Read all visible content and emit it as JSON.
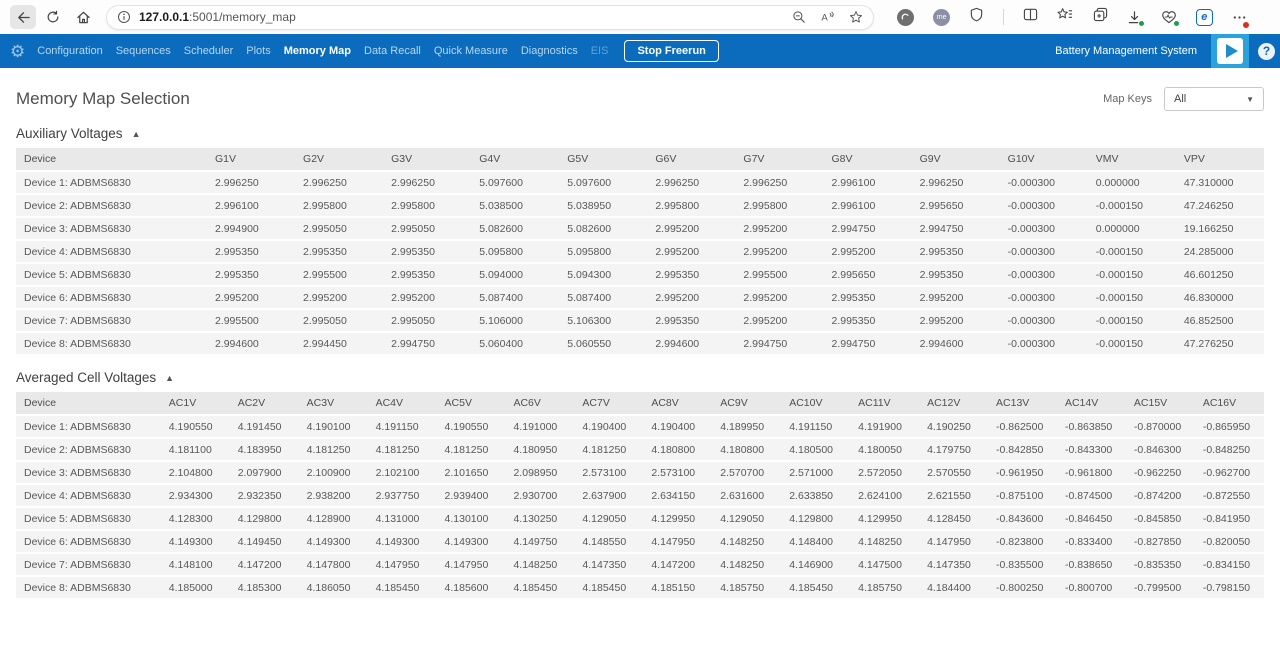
{
  "browser": {
    "url_host": "127.0.0.1",
    "url_rest": ":5001/memory_map"
  },
  "navbar": {
    "items": [
      {
        "label": "Configuration",
        "active": false,
        "disabled": false
      },
      {
        "label": "Sequences",
        "active": false,
        "disabled": false
      },
      {
        "label": "Scheduler",
        "active": false,
        "disabled": false
      },
      {
        "label": "Plots",
        "active": false,
        "disabled": false
      },
      {
        "label": "Memory Map",
        "active": true,
        "disabled": false
      },
      {
        "label": "Data Recall",
        "active": false,
        "disabled": false
      },
      {
        "label": "Quick Measure",
        "active": false,
        "disabled": false
      },
      {
        "label": "Diagnostics",
        "active": false,
        "disabled": false
      },
      {
        "label": "EIS",
        "active": false,
        "disabled": true
      }
    ],
    "stop_button": "Stop Freerun",
    "brand": "Battery Management System"
  },
  "page": {
    "title": "Memory Map Selection",
    "map_keys_label": "Map Keys",
    "map_keys_value": "All"
  },
  "sections": [
    {
      "title": "Auxiliary Voltages",
      "columns": [
        "Device",
        "G1V",
        "G2V",
        "G3V",
        "G4V",
        "G5V",
        "G6V",
        "G7V",
        "G8V",
        "G9V",
        "G10V",
        "VMV",
        "VPV"
      ],
      "rows": [
        {
          "device": "Device 1: ADBMS6830",
          "values": [
            "2.996250",
            "2.996250",
            "2.996250",
            "5.097600",
            "5.097600",
            "2.996250",
            "2.996250",
            "2.996100",
            "2.996250",
            "-0.000300",
            "0.000000",
            "47.310000"
          ]
        },
        {
          "device": "Device 2: ADBMS6830",
          "values": [
            "2.996100",
            "2.995800",
            "2.995800",
            "5.038500",
            "5.038950",
            "2.995800",
            "2.995800",
            "2.996100",
            "2.995650",
            "-0.000300",
            "-0.000150",
            "47.246250"
          ]
        },
        {
          "device": "Device 3: ADBMS6830",
          "values": [
            "2.994900",
            "2.995050",
            "2.995050",
            "5.082600",
            "5.082600",
            "2.995200",
            "2.995200",
            "2.994750",
            "2.994750",
            "-0.000300",
            "0.000000",
            "19.166250"
          ]
        },
        {
          "device": "Device 4: ADBMS6830",
          "values": [
            "2.995350",
            "2.995350",
            "2.995350",
            "5.095800",
            "5.095800",
            "2.995200",
            "2.995200",
            "2.995200",
            "2.995350",
            "-0.000300",
            "-0.000150",
            "24.285000"
          ]
        },
        {
          "device": "Device 5: ADBMS6830",
          "values": [
            "2.995350",
            "2.995500",
            "2.995350",
            "5.094000",
            "5.094300",
            "2.995350",
            "2.995500",
            "2.995650",
            "2.995350",
            "-0.000300",
            "-0.000150",
            "46.601250"
          ]
        },
        {
          "device": "Device 6: ADBMS6830",
          "values": [
            "2.995200",
            "2.995200",
            "2.995200",
            "5.087400",
            "5.087400",
            "2.995200",
            "2.995200",
            "2.995350",
            "2.995200",
            "-0.000300",
            "-0.000150",
            "46.830000"
          ]
        },
        {
          "device": "Device 7: ADBMS6830",
          "values": [
            "2.995500",
            "2.995050",
            "2.995050",
            "5.106000",
            "5.106300",
            "2.995350",
            "2.995200",
            "2.995350",
            "2.995200",
            "-0.000300",
            "-0.000150",
            "46.852500"
          ]
        },
        {
          "device": "Device 8: ADBMS6830",
          "values": [
            "2.994600",
            "2.994450",
            "2.994750",
            "5.060400",
            "5.060550",
            "2.994600",
            "2.994750",
            "2.994750",
            "2.994600",
            "-0.000300",
            "-0.000150",
            "47.276250"
          ]
        }
      ]
    },
    {
      "title": "Averaged Cell Voltages",
      "columns": [
        "Device",
        "AC1V",
        "AC2V",
        "AC3V",
        "AC4V",
        "AC5V",
        "AC6V",
        "AC7V",
        "AC8V",
        "AC9V",
        "AC10V",
        "AC11V",
        "AC12V",
        "AC13V",
        "AC14V",
        "AC15V",
        "AC16V"
      ],
      "rows": [
        {
          "device": "Device 1: ADBMS6830",
          "values": [
            "4.190550",
            "4.191450",
            "4.190100",
            "4.191150",
            "4.190550",
            "4.191000",
            "4.190400",
            "4.190400",
            "4.189950",
            "4.191150",
            "4.191900",
            "4.190250",
            "-0.862500",
            "-0.863850",
            "-0.870000",
            "-0.865950"
          ]
        },
        {
          "device": "Device 2: ADBMS6830",
          "values": [
            "4.181100",
            "4.183950",
            "4.181250",
            "4.181250",
            "4.181250",
            "4.180950",
            "4.181250",
            "4.180800",
            "4.180800",
            "4.180500",
            "4.180050",
            "4.179750",
            "-0.842850",
            "-0.843300",
            "-0.846300",
            "-0.848250"
          ]
        },
        {
          "device": "Device 3: ADBMS6830",
          "values": [
            "2.104800",
            "2.097900",
            "2.100900",
            "2.102100",
            "2.101650",
            "2.098950",
            "2.573100",
            "2.573100",
            "2.570700",
            "2.571000",
            "2.572050",
            "2.570550",
            "-0.961950",
            "-0.961800",
            "-0.962250",
            "-0.962700"
          ]
        },
        {
          "device": "Device 4: ADBMS6830",
          "values": [
            "2.934300",
            "2.932350",
            "2.938200",
            "2.937750",
            "2.939400",
            "2.930700",
            "2.637900",
            "2.634150",
            "2.631600",
            "2.633850",
            "2.624100",
            "2.621550",
            "-0.875100",
            "-0.874500",
            "-0.874200",
            "-0.872550"
          ]
        },
        {
          "device": "Device 5: ADBMS6830",
          "values": [
            "4.128300",
            "4.129800",
            "4.128900",
            "4.131000",
            "4.130100",
            "4.130250",
            "4.129050",
            "4.129950",
            "4.129050",
            "4.129800",
            "4.129950",
            "4.128450",
            "-0.843600",
            "-0.846450",
            "-0.845850",
            "-0.841950"
          ]
        },
        {
          "device": "Device 6: ADBMS6830",
          "values": [
            "4.149300",
            "4.149450",
            "4.149300",
            "4.149300",
            "4.149300",
            "4.149750",
            "4.148550",
            "4.147950",
            "4.148250",
            "4.148400",
            "4.148250",
            "4.147950",
            "-0.823800",
            "-0.833400",
            "-0.827850",
            "-0.820050"
          ]
        },
        {
          "device": "Device 7: ADBMS6830",
          "values": [
            "4.148100",
            "4.147200",
            "4.147800",
            "4.147950",
            "4.147950",
            "4.148250",
            "4.147350",
            "4.147200",
            "4.148250",
            "4.146900",
            "4.147500",
            "4.147350",
            "-0.835500",
            "-0.838650",
            "-0.835350",
            "-0.834150"
          ]
        },
        {
          "device": "Device 8: ADBMS6830",
          "values": [
            "4.185000",
            "4.185300",
            "4.186050",
            "4.185450",
            "4.185600",
            "4.185450",
            "4.185450",
            "4.185150",
            "4.185750",
            "4.185450",
            "4.185750",
            "4.184400",
            "-0.800250",
            "-0.800700",
            "-0.799500",
            "-0.798150"
          ]
        }
      ]
    }
  ],
  "colors": {
    "navbar_blue": "#0b6cbe",
    "play_tile_blue": "#2aa3dc",
    "table_header_bg": "#e9e9e9",
    "row_bg": "#f4f4f4"
  }
}
